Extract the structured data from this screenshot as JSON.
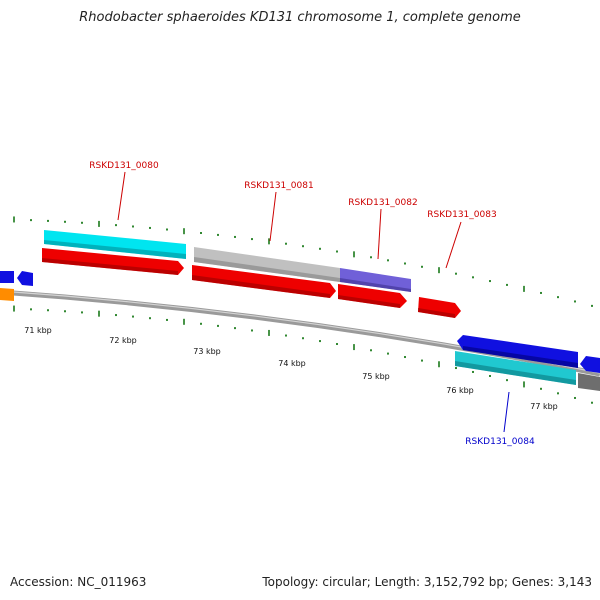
{
  "title": "Rhodobacter sphaeroides KD131 chromosome 1, complete genome",
  "footer": {
    "accession": "Accession: NC_011963",
    "topology": "Topology: circular; Length: 3,152,792 bp; Genes: 3,143"
  },
  "colors": {
    "tick": "#1a7a1a",
    "backbone": "#8c8c8c",
    "label_red": "#cc0000",
    "label_blue": "#0000cc"
  },
  "ruler_labels": [
    "71 kbp",
    "72 kbp",
    "73 kbp",
    "74 kbp",
    "75 kbp",
    "76 kbp",
    "77 kbp"
  ],
  "gene_labels": [
    {
      "name": "RSKD131_0080",
      "color": "#cc0000"
    },
    {
      "name": "RSKD131_0081",
      "color": "#cc0000"
    },
    {
      "name": "RSKD131_0082",
      "color": "#cc0000"
    },
    {
      "name": "RSKD131_0083",
      "color": "#cc0000"
    },
    {
      "name": "RSKD131_0084",
      "color": "#0000cc"
    }
  ]
}
